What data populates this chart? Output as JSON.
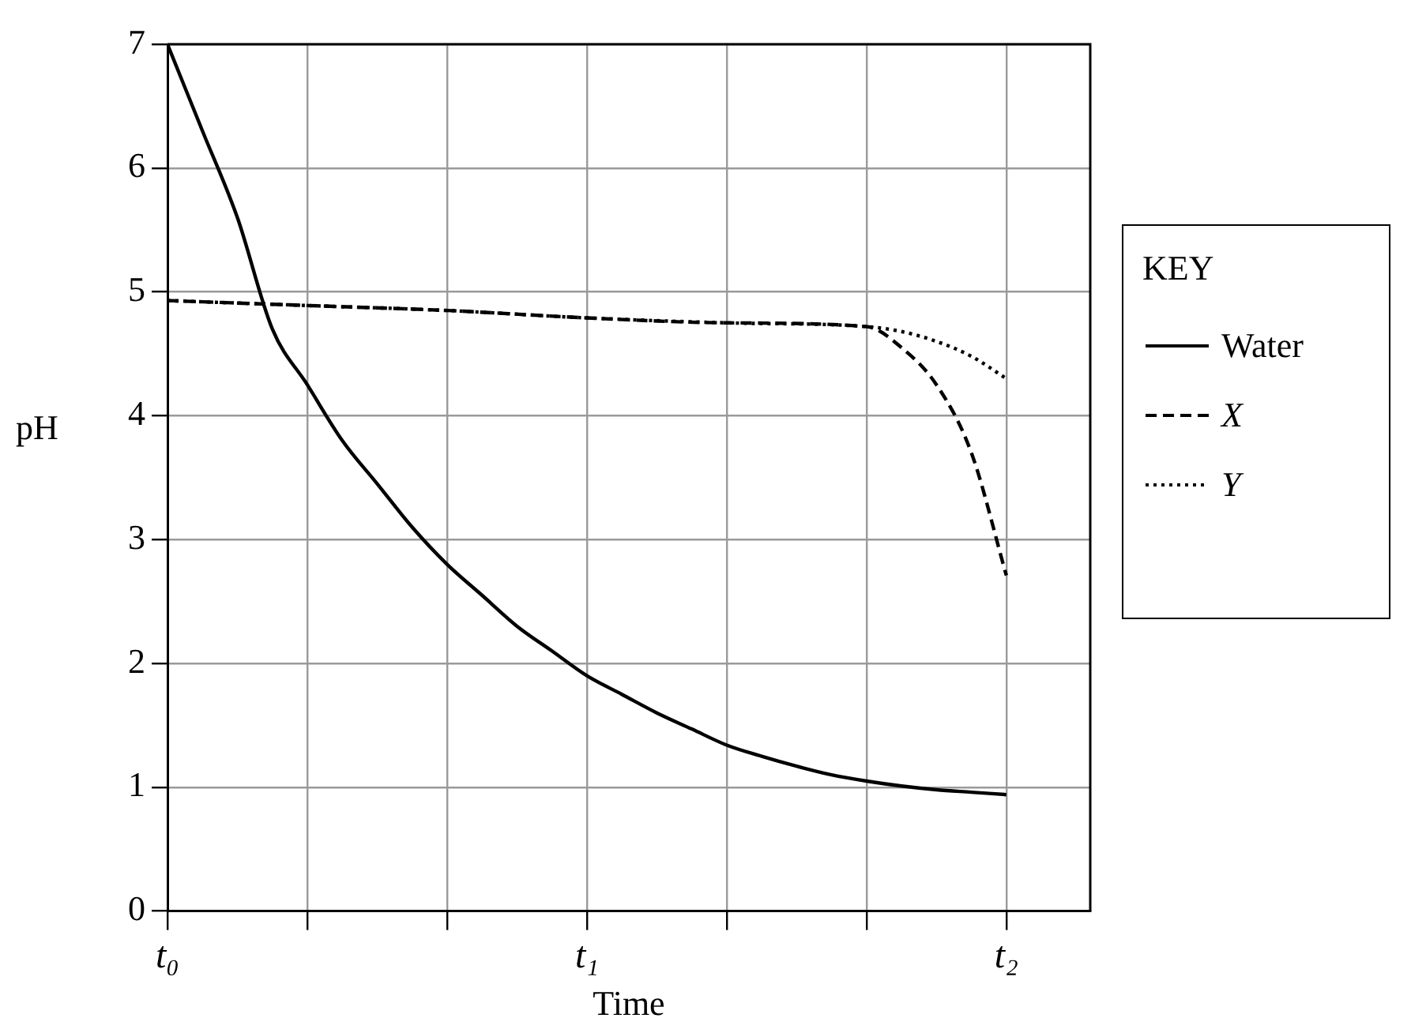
{
  "chart_data": {
    "type": "line",
    "xlabel": "Time",
    "ylabel": "pH",
    "legend_title": "KEY",
    "legend": "right",
    "grid": true,
    "marker": "none",
    "categories": [
      "t₀",
      null,
      null,
      null,
      null,
      null,
      null,
      null,
      null,
      null,
      null,
      null,
      "t₁",
      null,
      null,
      null,
      null,
      null,
      null,
      null,
      null,
      null,
      null,
      null,
      "t₂"
    ],
    "ylim": [
      0,
      7
    ],
    "yticks": [
      0,
      1,
      2,
      3,
      4,
      5,
      6,
      7
    ],
    "series": [
      {
        "name": "Water",
        "color": "#000000",
        "line_style": "solid",
        "values": [
          7,
          6.3,
          5.6,
          4.7,
          4.25,
          3.8,
          3.45,
          3.1,
          2.8,
          2.55,
          2.3,
          2.1,
          1.9,
          1.75,
          1.6,
          1.47,
          1.34,
          1.25,
          1.17,
          1.1,
          1.05,
          1.01,
          0.98,
          0.96,
          0.94
        ]
      },
      {
        "name": "X",
        "color": "#000000",
        "line_style": "dashed",
        "values": [
          4.93,
          null,
          null,
          null,
          4.89,
          null,
          null,
          null,
          4.85,
          null,
          null,
          null,
          4.79,
          null,
          null,
          null,
          4.75,
          null,
          null,
          null,
          4.72,
          4.55,
          4.25,
          3.7,
          2.71
        ]
      },
      {
        "name": "Y",
        "color": "#000000",
        "line_style": "dotted",
        "values": [
          4.93,
          null,
          null,
          null,
          4.89,
          null,
          null,
          null,
          4.85,
          null,
          null,
          null,
          4.79,
          null,
          null,
          null,
          4.75,
          null,
          null,
          null,
          4.72,
          4.68,
          4.6,
          4.48,
          4.3
        ]
      }
    ]
  }
}
